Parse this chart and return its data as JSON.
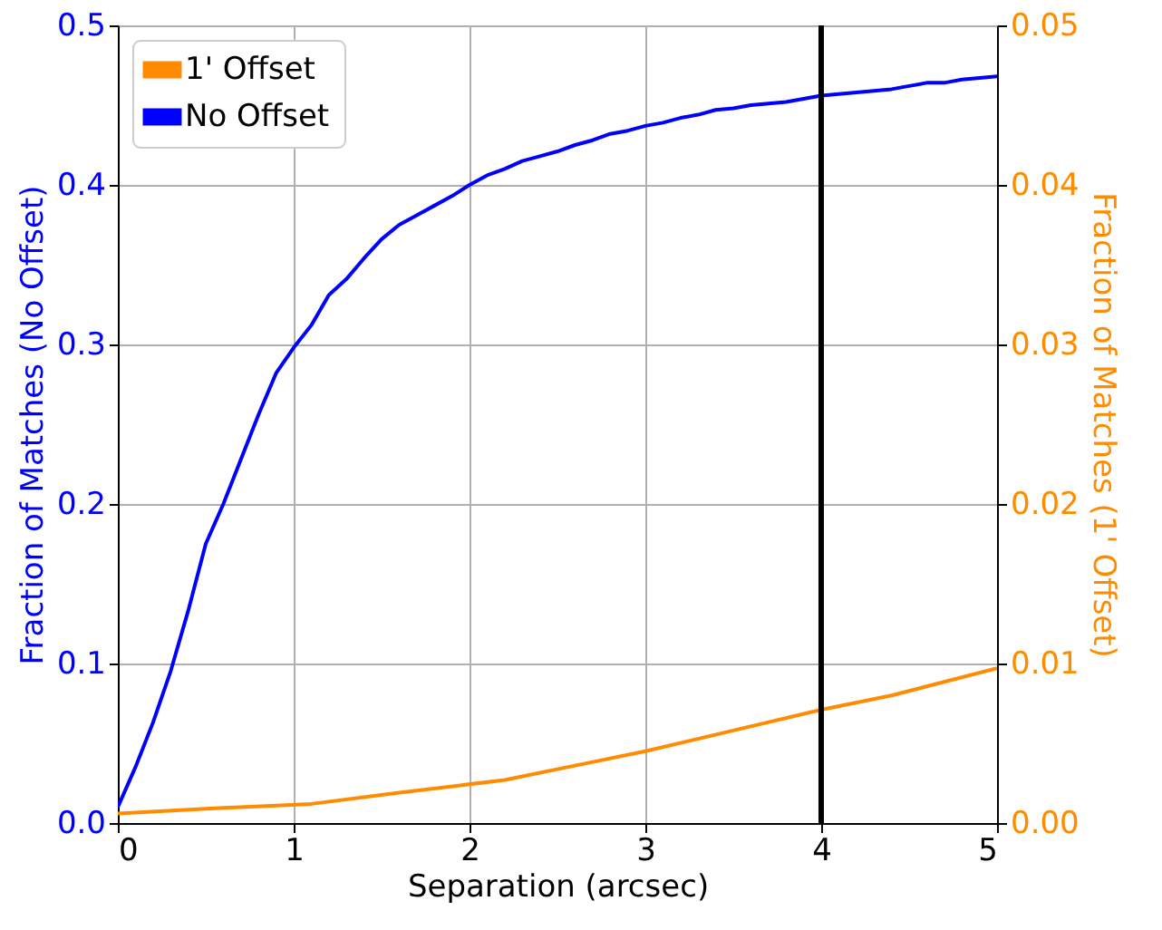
{
  "chart_data": {
    "type": "line",
    "xlabel": "Separation (arcsec)",
    "ylabel": "Fraction of Matches (No Offset)",
    "y2label": "Fraction of Matches (1' Offset)",
    "xlim": [
      0,
      5
    ],
    "xticks": [
      0,
      1,
      2,
      3,
      4,
      5
    ],
    "ylim": [
      0,
      0.5
    ],
    "yticks": [
      {
        "value": 0,
        "label": "0.0"
      },
      0.1,
      0.2,
      0.3,
      0.4,
      0.5
    ],
    "y2lim": [
      0,
      0.05
    ],
    "y2ticks": [
      {
        "value": 0,
        "label": "0.00"
      },
      0.01,
      0.02,
      0.03,
      0.04,
      0.05
    ],
    "grid": true,
    "legend": "top left",
    "line_style": "solid",
    "ref_lines": [
      {
        "axis": "x",
        "value": 4,
        "color": "#000000"
      }
    ],
    "series": [
      {
        "name": "1' Offset",
        "color": "#ff8c00",
        "axis": "y2",
        "x": [
          0,
          0.5,
          1.1,
          1.6,
          2.2,
          2.6,
          3.0,
          3.5,
          4.0,
          4.4,
          5.0
        ],
        "values": [
          0.0006,
          0.0009,
          0.0012,
          0.0019,
          0.0027,
          0.0036,
          0.0045,
          0.0058,
          0.0071,
          0.008,
          0.0097
        ]
      },
      {
        "name": "No Offset",
        "color": "#0000ff",
        "x": [
          0,
          0.1,
          0.2,
          0.3,
          0.4,
          0.5,
          0.6,
          0.7,
          0.8,
          0.9,
          1.0,
          1.1,
          1.2,
          1.3,
          1.4,
          1.5,
          1.6,
          1.7,
          1.8,
          1.9,
          2.0,
          2.1,
          2.2,
          2.3,
          2.4,
          2.5,
          2.6,
          2.7,
          2.8,
          2.9,
          3.0,
          3.1,
          3.2,
          3.3,
          3.4,
          3.5,
          3.6,
          3.7,
          3.8,
          3.9,
          4.0,
          4.1,
          4.2,
          4.3,
          4.4,
          4.5,
          4.6,
          4.7,
          4.8,
          4.9,
          5.0
        ],
        "values": [
          0.01,
          0.035,
          0.063,
          0.095,
          0.133,
          0.175,
          0.2,
          0.228,
          0.256,
          0.282,
          0.298,
          0.312,
          0.331,
          0.341,
          0.354,
          0.366,
          0.375,
          0.381,
          0.387,
          0.393,
          0.4,
          0.406,
          0.41,
          0.415,
          0.418,
          0.421,
          0.425,
          0.428,
          0.432,
          0.434,
          0.437,
          0.439,
          0.442,
          0.444,
          0.447,
          0.448,
          0.45,
          0.451,
          0.452,
          0.454,
          0.456,
          0.457,
          0.458,
          0.459,
          0.46,
          0.462,
          0.464,
          0.464,
          0.466,
          0.467,
          0.468
        ]
      }
    ]
  }
}
